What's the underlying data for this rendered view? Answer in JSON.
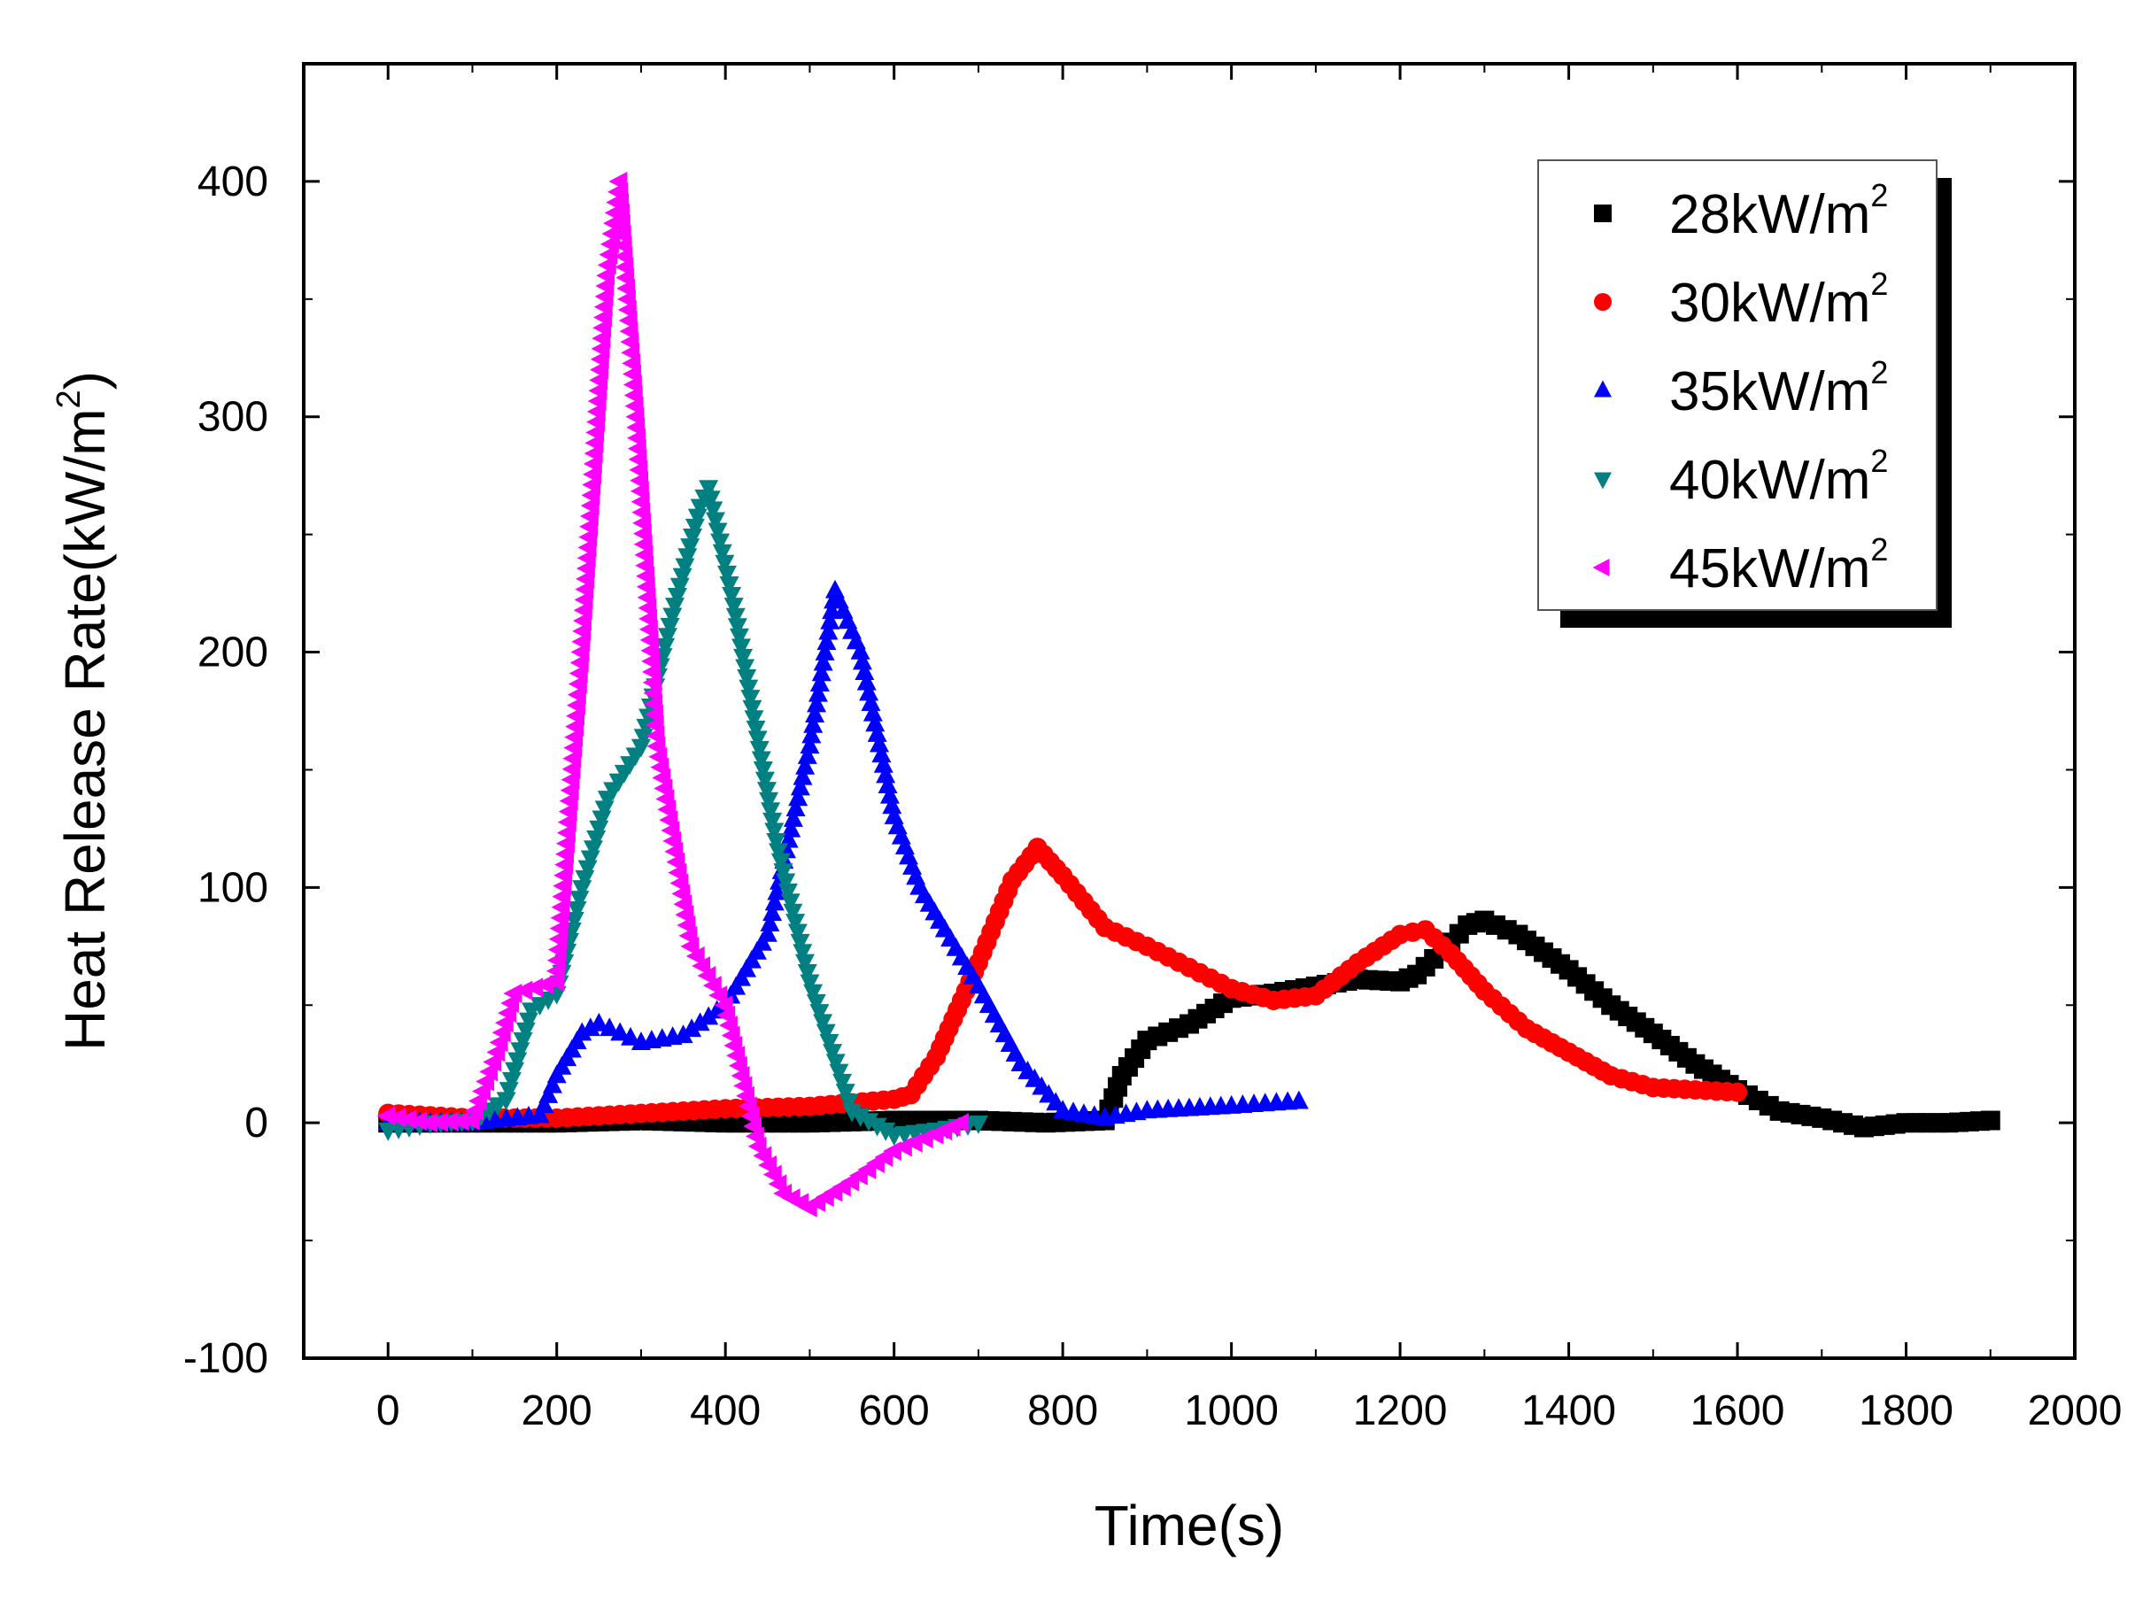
{
  "chart_data": {
    "type": "scatter",
    "title": "",
    "xlabel": "Time(s)",
    "ylabel": "Heat Release Rate(kW/m",
    "ylabel_sup": "2",
    "ylabel_close": ")",
    "xlim": [
      -100,
      2000
    ],
    "ylim": [
      -100,
      450
    ],
    "xticks": [
      0,
      200,
      400,
      600,
      800,
      1000,
      1200,
      1400,
      1600,
      1800,
      2000
    ],
    "yticks": [
      -100,
      0,
      100,
      200,
      300,
      400
    ],
    "xtick_labels": [
      "0",
      "200",
      "400",
      "600",
      "800",
      "1000",
      "1200",
      "1400",
      "1600",
      "1800",
      "2000"
    ],
    "ytick_labels": [
      "-100",
      "0",
      "100",
      "200",
      "300",
      "400"
    ],
    "grid": false,
    "legend_position": "top-right",
    "series": [
      {
        "name": "28kW/m",
        "sup": "2",
        "color": "#000000",
        "marker": "square",
        "points": [
          [
            0,
            0
          ],
          [
            100,
            0
          ],
          [
            200,
            0
          ],
          [
            300,
            1
          ],
          [
            400,
            0
          ],
          [
            500,
            0
          ],
          [
            600,
            1
          ],
          [
            700,
            1
          ],
          [
            780,
            0
          ],
          [
            850,
            1
          ],
          [
            870,
            20
          ],
          [
            900,
            35
          ],
          [
            950,
            42
          ],
          [
            1000,
            53
          ],
          [
            1050,
            55
          ],
          [
            1100,
            58
          ],
          [
            1150,
            61
          ],
          [
            1200,
            60
          ],
          [
            1220,
            63
          ],
          [
            1250,
            73
          ],
          [
            1280,
            84
          ],
          [
            1300,
            86
          ],
          [
            1340,
            80
          ],
          [
            1400,
            65
          ],
          [
            1450,
            50
          ],
          [
            1500,
            38
          ],
          [
            1550,
            25
          ],
          [
            1600,
            14
          ],
          [
            1650,
            5
          ],
          [
            1700,
            2
          ],
          [
            1750,
            -2
          ],
          [
            1800,
            0
          ],
          [
            1850,
            0
          ],
          [
            1900,
            1
          ]
        ]
      },
      {
        "name": "30kW/m",
        "sup": "2",
        "color": "#ff0000",
        "marker": "circle",
        "points": [
          [
            0,
            4
          ],
          [
            100,
            2
          ],
          [
            200,
            2
          ],
          [
            300,
            4
          ],
          [
            400,
            6
          ],
          [
            500,
            7
          ],
          [
            600,
            10
          ],
          [
            620,
            12
          ],
          [
            650,
            28
          ],
          [
            700,
            68
          ],
          [
            740,
            103
          ],
          [
            770,
            117
          ],
          [
            800,
            105
          ],
          [
            850,
            83
          ],
          [
            900,
            75
          ],
          [
            950,
            66
          ],
          [
            1000,
            57
          ],
          [
            1050,
            52
          ],
          [
            1100,
            54
          ],
          [
            1150,
            68
          ],
          [
            1200,
            80
          ],
          [
            1230,
            82
          ],
          [
            1260,
            72
          ],
          [
            1300,
            56
          ],
          [
            1350,
            40
          ],
          [
            1400,
            30
          ],
          [
            1450,
            20
          ],
          [
            1500,
            15
          ],
          [
            1550,
            14
          ],
          [
            1600,
            13
          ]
        ]
      },
      {
        "name": "35kW/m",
        "sup": "2",
        "color": "#0000ff",
        "marker": "triangle-up",
        "points": [
          [
            0,
            0
          ],
          [
            100,
            0
          ],
          [
            180,
            3
          ],
          [
            200,
            20
          ],
          [
            230,
            38
          ],
          [
            250,
            42
          ],
          [
            300,
            34
          ],
          [
            350,
            37
          ],
          [
            400,
            50
          ],
          [
            450,
            80
          ],
          [
            500,
            160
          ],
          [
            530,
            226
          ],
          [
            560,
            200
          ],
          [
            600,
            130
          ],
          [
            630,
            100
          ],
          [
            660,
            82
          ],
          [
            700,
            58
          ],
          [
            750,
            25
          ],
          [
            800,
            5
          ],
          [
            850,
            2
          ],
          [
            900,
            5
          ],
          [
            1000,
            7
          ],
          [
            1080,
            9
          ]
        ]
      },
      {
        "name": "40kW/m",
        "sup": "2",
        "color": "#008080",
        "marker": "triangle-down",
        "points": [
          [
            0,
            -3
          ],
          [
            50,
            0
          ],
          [
            100,
            1
          ],
          [
            140,
            10
          ],
          [
            170,
            48
          ],
          [
            200,
            55
          ],
          [
            230,
            100
          ],
          [
            260,
            138
          ],
          [
            300,
            160
          ],
          [
            340,
            220
          ],
          [
            370,
            262
          ],
          [
            380,
            270
          ],
          [
            410,
            220
          ],
          [
            460,
            120
          ],
          [
            500,
            60
          ],
          [
            550,
            5
          ],
          [
            600,
            -5
          ],
          [
            650,
            -3
          ],
          [
            700,
            0
          ]
        ]
      },
      {
        "name": "45kW/m",
        "sup": "2",
        "color": "#ff00ff",
        "marker": "triangle-left",
        "points": [
          [
            0,
            3
          ],
          [
            50,
            0
          ],
          [
            100,
            1
          ],
          [
            130,
            30
          ],
          [
            150,
            55
          ],
          [
            200,
            60
          ],
          [
            230,
            200
          ],
          [
            260,
            360
          ],
          [
            275,
            400
          ],
          [
            295,
            300
          ],
          [
            320,
            160
          ],
          [
            360,
            75
          ],
          [
            400,
            50
          ],
          [
            440,
            -10
          ],
          [
            470,
            -30
          ],
          [
            500,
            -36
          ],
          [
            550,
            -25
          ],
          [
            600,
            -12
          ],
          [
            650,
            -5
          ],
          [
            680,
            0
          ]
        ]
      }
    ]
  }
}
